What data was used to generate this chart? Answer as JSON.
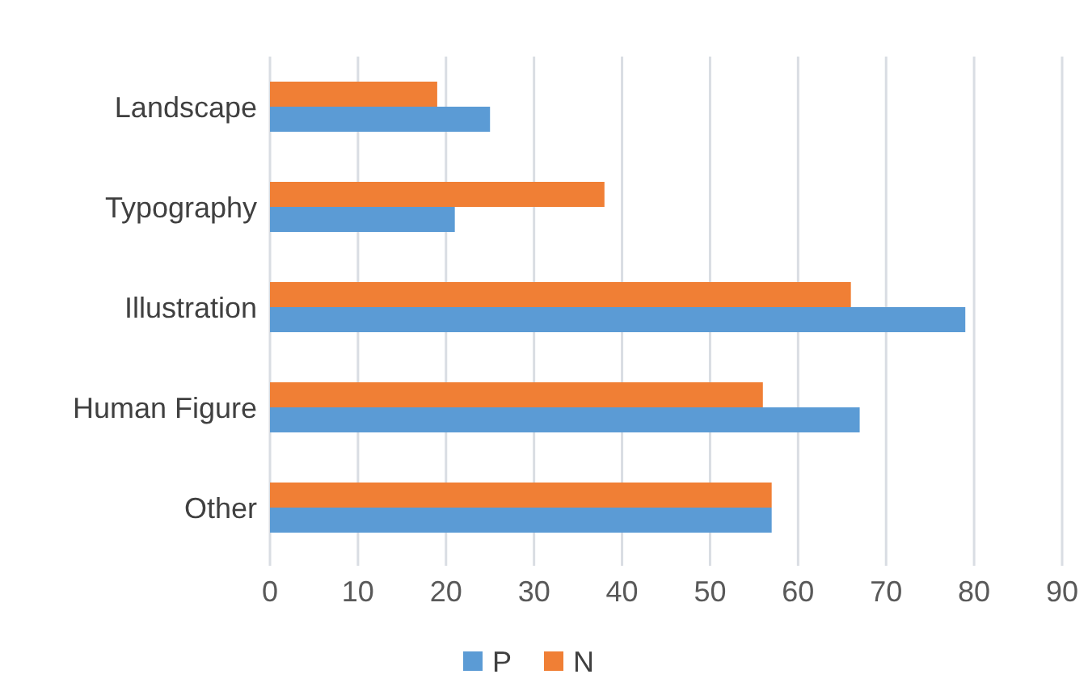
{
  "chart_data": {
    "type": "bar",
    "orientation": "horizontal",
    "categories": [
      "Landscape",
      "Typography",
      "Illustration",
      "Human Figure",
      "Other"
    ],
    "series": [
      {
        "name": "P",
        "color": "#5b9bd5",
        "values": [
          25,
          21,
          79,
          67,
          57
        ]
      },
      {
        "name": "N",
        "color": "#f07f35",
        "values": [
          19,
          38,
          66,
          56,
          57
        ]
      }
    ],
    "xlim": [
      0,
      90
    ],
    "xticks": [
      0,
      10,
      20,
      30,
      40,
      50,
      60,
      70,
      80,
      90
    ],
    "grid": "x",
    "legend": "bottom"
  }
}
